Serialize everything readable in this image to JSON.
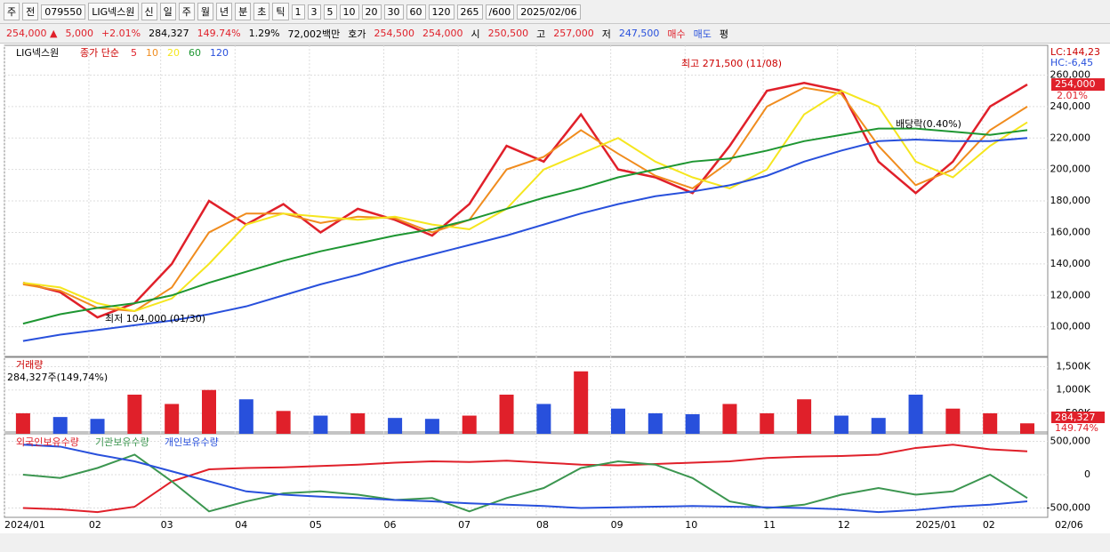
{
  "toolbar": {
    "items": [
      "주",
      "전",
      "079550",
      "LIG넥스원",
      "신",
      "일",
      "주",
      "월",
      "년",
      "분",
      "초",
      "틱",
      "1",
      "3",
      "5",
      "10",
      "20",
      "30",
      "60",
      "120",
      "265",
      "/600",
      "2025/02/06"
    ]
  },
  "quote": {
    "items": [
      "254,000 ▲",
      "5,000",
      "+2.01%",
      "284,327",
      "149.74%",
      "1.29%",
      "72,002백만",
      "호가",
      "254,500",
      "254,000",
      "시",
      "250,500",
      "고",
      "257,000",
      "저",
      "247,500",
      "매수",
      "매도",
      "평"
    ]
  },
  "chart_data": [
    {
      "type": "line",
      "stock": "LIG넥스원",
      "legend_title": "종가 단순",
      "series": [
        {
          "name": "5",
          "color": "#e0202a",
          "values": [
            128000,
            122000,
            106000,
            115000,
            140000,
            180000,
            165000,
            178000,
            160000,
            175000,
            168000,
            158000,
            178000,
            215000,
            205000,
            235000,
            200000,
            195000,
            185000,
            215000,
            250000,
            255000,
            250000,
            205000,
            185000,
            205000,
            240000,
            254000
          ]
        },
        {
          "name": "10",
          "color": "#f08c1e",
          "values": [
            127000,
            123000,
            112000,
            110000,
            125000,
            160000,
            172000,
            172000,
            166000,
            170000,
            169000,
            160000,
            168000,
            200000,
            208000,
            225000,
            210000,
            196000,
            188000,
            205000,
            240000,
            252000,
            248000,
            215000,
            190000,
            200000,
            225000,
            240000
          ]
        },
        {
          "name": "20",
          "color": "#f5e61e",
          "values": [
            128000,
            125000,
            115000,
            110000,
            118000,
            140000,
            165000,
            172000,
            170000,
            168000,
            170000,
            165000,
            162000,
            175000,
            200000,
            210000,
            220000,
            205000,
            195000,
            188000,
            200000,
            235000,
            250000,
            240000,
            205000,
            195000,
            215000,
            230000
          ]
        },
        {
          "name": "60",
          "color": "#1e9632",
          "values": [
            102000,
            108000,
            112000,
            115000,
            120000,
            128000,
            135000,
            142000,
            148000,
            153000,
            158000,
            162000,
            168000,
            175000,
            182000,
            188000,
            195000,
            200000,
            205000,
            207000,
            212000,
            218000,
            222000,
            226000,
            226000,
            224000,
            222000,
            225000
          ]
        },
        {
          "name": "120",
          "color": "#2850dc",
          "values": [
            91000,
            95000,
            98000,
            101000,
            104000,
            108000,
            113000,
            120000,
            127000,
            133000,
            140000,
            146000,
            152000,
            158000,
            165000,
            172000,
            178000,
            183000,
            186000,
            190000,
            196000,
            205000,
            212000,
            218000,
            219000,
            218000,
            218000,
            220000
          ]
        }
      ],
      "ylim": [
        80600,
        278900
      ],
      "yticks": [
        {
          "value": 100000,
          "label": "100,000"
        },
        {
          "value": 120000,
          "label": "120,000"
        },
        {
          "value": 140000,
          "label": "140,000"
        },
        {
          "value": 160000,
          "label": "160,000"
        },
        {
          "value": 180000,
          "label": "180,000"
        },
        {
          "value": 200000,
          "label": "200,000"
        },
        {
          "value": 220000,
          "label": "220,000"
        },
        {
          "value": 240000,
          "label": "240,000"
        },
        {
          "value": 260000,
          "label": "260,000"
        }
      ],
      "annotations": [
        "최고 271,500 (11/08)",
        "최저 104,000 (01/30)",
        "배당락(0.40%)"
      ],
      "last_value_label": "254,000",
      "last_change_label": "2.01%",
      "lc": "LC:144,23",
      "hc": "HC:-6,45"
    },
    {
      "type": "bar",
      "title": "거래량",
      "subtitle": "284,327주(149,74%)",
      "values": [
        500000,
        420000,
        380000,
        900000,
        700000,
        1000000,
        800000,
        550000,
        450000,
        500000,
        400000,
        380000,
        450000,
        900000,
        700000,
        1400000,
        600000,
        500000,
        480000,
        700000,
        500000,
        800000,
        450000,
        400000,
        900000,
        600000,
        500000,
        284327
      ],
      "ylim": [
        60000,
        1720000
      ],
      "yticks": [
        {
          "value": 500000,
          "label": "500K"
        },
        {
          "value": 1000000,
          "label": "1,000K"
        },
        {
          "value": 1500000,
          "label": "1,500K"
        }
      ],
      "last_value_label": "284,327",
      "last_change_label": "149.74%"
    },
    {
      "type": "line",
      "series": [
        {
          "name": "외국인보유수량",
          "color": "#e0202a",
          "values": [
            -500000,
            -520000,
            -560000,
            -480000,
            -100000,
            80000,
            100000,
            110000,
            130000,
            150000,
            180000,
            200000,
            190000,
            210000,
            180000,
            150000,
            140000,
            160000,
            180000,
            200000,
            250000,
            270000,
            280000,
            300000,
            400000,
            450000,
            380000,
            350000
          ]
        },
        {
          "name": "기관보유수량",
          "color": "#3c9650",
          "values": [
            0,
            -50000,
            100000,
            300000,
            -100000,
            -550000,
            -400000,
            -280000,
            -250000,
            -300000,
            -380000,
            -350000,
            -550000,
            -350000,
            -200000,
            100000,
            200000,
            150000,
            -50000,
            -400000,
            -500000,
            -450000,
            -300000,
            -200000,
            -300000,
            -250000,
            0,
            -350000
          ]
        },
        {
          "name": "개인보유수량",
          "color": "#2850dc",
          "values": [
            450000,
            420000,
            300000,
            200000,
            50000,
            -100000,
            -250000,
            -300000,
            -330000,
            -350000,
            -380000,
            -400000,
            -430000,
            -450000,
            -470000,
            -500000,
            -490000,
            -480000,
            -470000,
            -480000,
            -490000,
            -500000,
            -520000,
            -560000,
            -530000,
            -480000,
            -450000,
            -400000
          ]
        }
      ],
      "ylim": [
        -639000,
        639000
      ],
      "yticks": [
        {
          "value": -500000,
          "label": "-500,000"
        },
        0,
        {
          "value": 500000,
          "label": "500,000"
        }
      ],
      "xlim": [
        0,
        28.05
      ],
      "xticks": [
        {
          "value": 0,
          "label": "2024/01"
        },
        {
          "value": 2.27,
          "label": "02"
        },
        {
          "value": 4.2,
          "label": "03"
        },
        {
          "value": 6.2,
          "label": "04"
        },
        {
          "value": 8.2,
          "label": "05"
        },
        {
          "value": 10.2,
          "label": "06"
        },
        {
          "value": 12.2,
          "label": "07"
        },
        {
          "value": 14.3,
          "label": "08"
        },
        {
          "value": 16.3,
          "label": "09"
        },
        {
          "value": 18.3,
          "label": "10"
        },
        {
          "value": 20.4,
          "label": "11"
        },
        {
          "value": 22.4,
          "label": "12"
        },
        {
          "value": 24.5,
          "label": "2025/01"
        },
        {
          "value": 26.3,
          "label": "02"
        }
      ],
      "x_end_label": "02/06"
    }
  ]
}
